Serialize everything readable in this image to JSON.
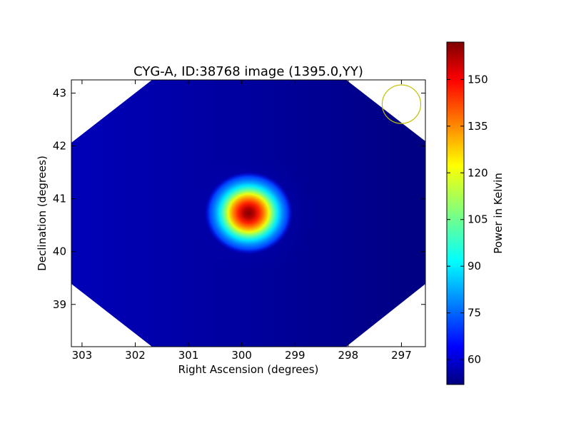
{
  "chart_data": {
    "type": "heatmap",
    "title": "CYG-A, ID:38768 image (1395.0,YY)",
    "xlabel": "Right Ascension (degrees)",
    "ylabel": "Declination (degrees)",
    "xlim": [
      303.2,
      296.55
    ],
    "ylim": [
      38.2,
      43.25
    ],
    "x_ticks": [
      303,
      302,
      301,
      300,
      299,
      298,
      297
    ],
    "y_ticks": [
      39,
      40,
      41,
      42,
      43
    ],
    "x_axis_direction": "decreasing to the right",
    "grid": false,
    "source": {
      "name": "CYG-A",
      "ra": 299.87,
      "dec": 40.73,
      "peak_kelvin": 162
    },
    "background_kelvin": 55,
    "beam_marker": {
      "ra": 297.0,
      "dec": 42.79,
      "color": "#bfbf00"
    },
    "colorbar": {
      "label": "Power in Kelvin",
      "colormap": "jet",
      "range": [
        52,
        162
      ],
      "ticks": [
        60,
        75,
        90,
        105,
        120,
        135,
        150
      ]
    }
  }
}
